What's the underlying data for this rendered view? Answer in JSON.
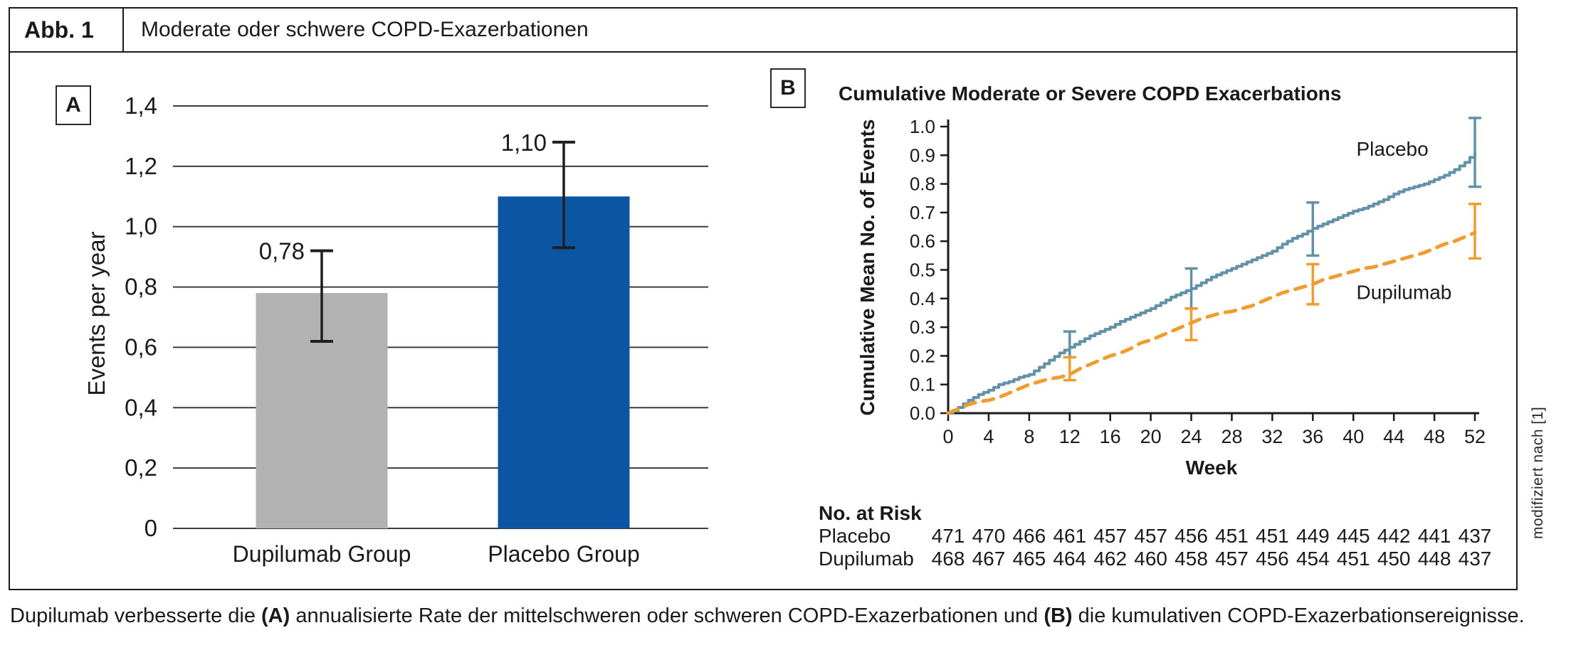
{
  "header": {
    "figure_label": "Abb. 1",
    "title": "Moderate oder schwere COPD-Exazerbationen"
  },
  "side_note": "modifiziert nach [1]",
  "caption": {
    "pre": "Dupilumab verbesserte die ",
    "a_bold": "(A)",
    "mid": " annualisierte Rate der mittelschweren oder schweren COPD-Exazerbationen und ",
    "b_bold": "(B)",
    "post": " die kumulativen COPD-Exazerbationsereignisse."
  },
  "chart_data": [
    {
      "type": "bar",
      "panel_label": "A",
      "ylabel": "Events per year",
      "ylim": [
        0,
        1.4
      ],
      "grid": true,
      "ytick_values": [
        0,
        0.2,
        0.4,
        0.6,
        0.8,
        1.0,
        1.2,
        1.4
      ],
      "ytick_labels": [
        "0",
        "0,2",
        "0,4",
        "0,6",
        "0,8",
        "1,0",
        "1,2",
        "1,4"
      ],
      "categories": [
        "Dupilumab Group",
        "Placebo Group"
      ],
      "values": [
        0.78,
        1.1
      ],
      "value_labels": [
        "0,78",
        "1,10"
      ],
      "error_low": [
        0.62,
        0.93
      ],
      "error_high": [
        0.92,
        1.28
      ],
      "bar_colors": [
        "#b2b2b2",
        "#0b55a2"
      ],
      "error_color": "#1f1f1f"
    },
    {
      "type": "line",
      "panel_label": "B",
      "title": "Cumulative Moderate or Severe COPD Exacerbations",
      "xlabel": "Week",
      "ylabel": "Cumulative Mean No. of Events",
      "xlim": [
        0,
        52
      ],
      "ylim": [
        0,
        1.0
      ],
      "xticks": [
        0,
        4,
        8,
        12,
        16,
        20,
        24,
        28,
        32,
        36,
        40,
        44,
        48,
        52
      ],
      "ytick_labels": [
        "0.0",
        "0.1",
        "0.2",
        "0.3",
        "0.4",
        "0.5",
        "0.6",
        "0.7",
        "0.8",
        "0.9",
        "1.0"
      ],
      "ytick_values": [
        0,
        0.1,
        0.2,
        0.3,
        0.4,
        0.5,
        0.6,
        0.7,
        0.8,
        0.9,
        1.0
      ],
      "x_start": 0,
      "x_step": 1,
      "series": [
        {
          "name": "Placebo",
          "color": "#6291a8",
          "style": "solid-step",
          "y": [
            0.0,
            0.02,
            0.045,
            0.065,
            0.08,
            0.1,
            0.11,
            0.125,
            0.135,
            0.16,
            0.185,
            0.21,
            0.23,
            0.25,
            0.27,
            0.285,
            0.3,
            0.32,
            0.335,
            0.35,
            0.365,
            0.385,
            0.405,
            0.42,
            0.435,
            0.455,
            0.475,
            0.49,
            0.505,
            0.52,
            0.535,
            0.55,
            0.565,
            0.59,
            0.61,
            0.625,
            0.645,
            0.66,
            0.675,
            0.69,
            0.705,
            0.715,
            0.73,
            0.745,
            0.765,
            0.78,
            0.79,
            0.8,
            0.815,
            0.83,
            0.85,
            0.875,
            0.91
          ],
          "error_bars": [
            {
              "week": 12,
              "lo": 0.195,
              "hi": 0.285
            },
            {
              "week": 24,
              "lo": 0.365,
              "hi": 0.505
            },
            {
              "week": 36,
              "lo": 0.55,
              "hi": 0.735
            },
            {
              "week": 52,
              "lo": 0.79,
              "hi": 1.03
            }
          ],
          "label_pos": {
            "week": 40.3,
            "value": 0.92
          }
        },
        {
          "name": "Dupilumab",
          "color": "#ee9d2e",
          "style": "dashed",
          "y": [
            0.0,
            0.015,
            0.03,
            0.04,
            0.045,
            0.055,
            0.07,
            0.085,
            0.1,
            0.11,
            0.12,
            0.125,
            0.135,
            0.155,
            0.17,
            0.185,
            0.2,
            0.21,
            0.225,
            0.245,
            0.255,
            0.27,
            0.285,
            0.3,
            0.315,
            0.33,
            0.34,
            0.35,
            0.355,
            0.365,
            0.375,
            0.39,
            0.405,
            0.42,
            0.43,
            0.44,
            0.45,
            0.465,
            0.475,
            0.485,
            0.495,
            0.505,
            0.51,
            0.52,
            0.53,
            0.54,
            0.55,
            0.56,
            0.575,
            0.59,
            0.6,
            0.615,
            0.63
          ],
          "error_bars": [
            {
              "week": 12,
              "lo": 0.115,
              "hi": 0.195
            },
            {
              "week": 24,
              "lo": 0.255,
              "hi": 0.365
            },
            {
              "week": 36,
              "lo": 0.38,
              "hi": 0.52
            },
            {
              "week": 52,
              "lo": 0.54,
              "hi": 0.73
            }
          ],
          "label_pos": {
            "week": 40.3,
            "value": 0.42
          }
        }
      ],
      "at_risk": {
        "heading": "No. at Risk",
        "weeks": [
          0,
          4,
          8,
          12,
          16,
          20,
          24,
          28,
          32,
          36,
          40,
          44,
          48,
          52
        ],
        "rows": [
          {
            "name": "Placebo",
            "counts": [
              471,
              470,
              466,
              461,
              457,
              457,
              456,
              451,
              451,
              449,
              445,
              442,
              441,
              437
            ]
          },
          {
            "name": "Dupilumab",
            "counts": [
              468,
              467,
              465,
              464,
              462,
              460,
              458,
              457,
              456,
              454,
              451,
              450,
              448,
              437
            ]
          }
        ]
      }
    }
  ]
}
